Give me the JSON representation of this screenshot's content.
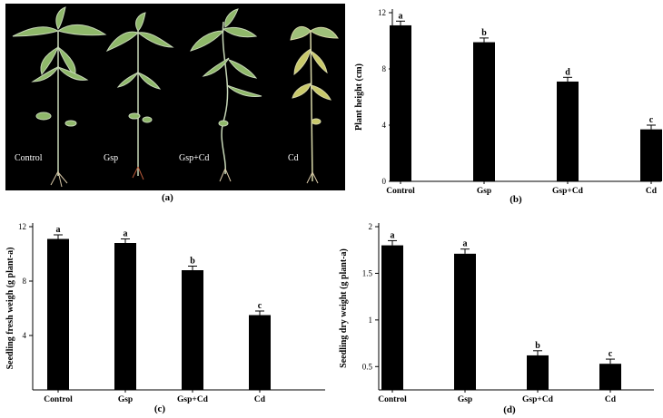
{
  "photo_panel": {
    "letter": "(a)",
    "plant_labels": [
      "Control",
      "Gsp",
      "Gsp+Cd",
      "Cd"
    ]
  },
  "colors": {
    "bar": "#000000",
    "photo_background": "#000000",
    "leaf": "#8fb86a",
    "leaf_yellow": "#c9c96a"
  },
  "chart_data": [
    {
      "id": "b",
      "type": "bar",
      "letter": "(b)",
      "categories": [
        "Control",
        "Gsp",
        "Gsp+Cd",
        "Cd"
      ],
      "values": [
        11.1,
        9.9,
        7.1,
        3.7
      ],
      "errors": [
        0.3,
        0.3,
        0.3,
        0.3
      ],
      "significance": [
        "a",
        "b",
        "d",
        "c"
      ],
      "ylabel": "Plant height (cm)",
      "ylim": [
        0,
        12
      ],
      "yticks": [
        0,
        4,
        8,
        12
      ],
      "ytick_labels": [
        "0",
        "4",
        "8",
        "12"
      ]
    },
    {
      "id": "c",
      "type": "bar",
      "letter": "(c)",
      "categories": [
        "Control",
        "Gsp",
        "Gsp+Cd",
        "Cd"
      ],
      "values": [
        11.1,
        10.8,
        8.8,
        5.5
      ],
      "errors": [
        0.3,
        0.3,
        0.3,
        0.3
      ],
      "significance": [
        "a",
        "a",
        "b",
        "c"
      ],
      "ylabel": "Seedling fresh weigh (g plant-a)",
      "ylim": [
        0,
        12
      ],
      "yticks": [
        4,
        8,
        12
      ],
      "ytick_labels": [
        "4",
        "8",
        "12"
      ]
    },
    {
      "id": "d",
      "type": "bar",
      "letter": "(d)",
      "categories": [
        "Control",
        "Gsp",
        "Gsp+Cd",
        "Cd"
      ],
      "values": [
        1.8,
        1.71,
        0.62,
        0.53
      ],
      "errors": [
        0.05,
        0.05,
        0.05,
        0.05
      ],
      "significance": [
        "a",
        "a",
        "b",
        "c"
      ],
      "ylabel": "Seedling dry weight (g plant-a)",
      "ylim": [
        0.25,
        2
      ],
      "yticks": [
        0.5,
        1,
        1.5,
        2
      ],
      "ytick_labels": [
        "0.5",
        "1",
        "1.5",
        "2"
      ]
    }
  ]
}
